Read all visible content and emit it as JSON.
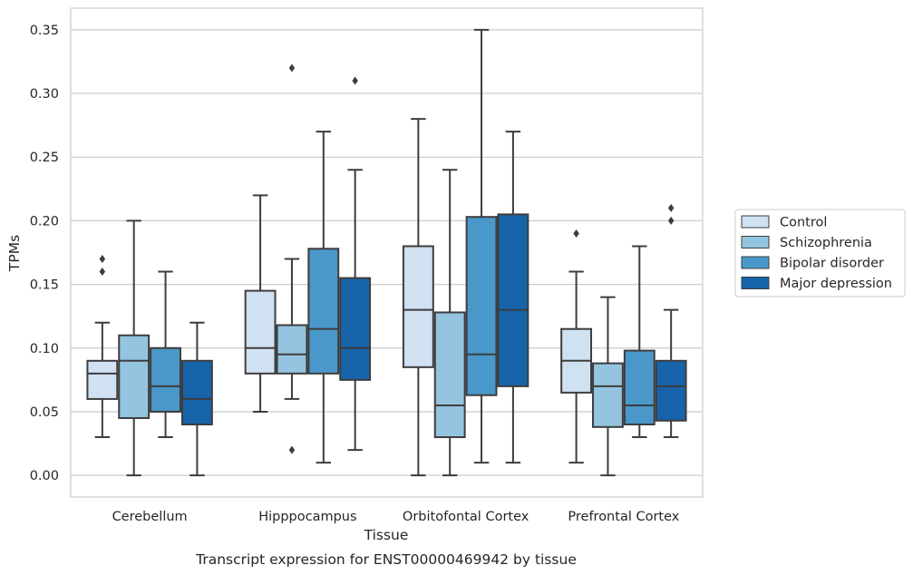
{
  "chart_data": {
    "type": "box",
    "title": "",
    "caption": "Transcript expression for ENST00000469942 by tissue",
    "xlabel": "Tissue",
    "ylabel": "TPMs",
    "ylim": [
      -0.017,
      0.367
    ],
    "yticks": [
      0.0,
      0.05,
      0.1,
      0.15,
      0.2,
      0.25,
      0.3,
      0.35
    ],
    "ytick_labels": [
      "0.00",
      "0.05",
      "0.10",
      "0.15",
      "0.20",
      "0.25",
      "0.30",
      "0.35"
    ],
    "grid": "horizontal",
    "legend_position": "right",
    "categories": [
      "Cerebellum",
      "Hipppocampus",
      "Orbitofontal Cortex",
      "Prefrontal Cortex"
    ],
    "series": [
      {
        "name": "Control",
        "color": "#d0e1f2",
        "boxes": [
          {
            "whislo": 0.03,
            "q1": 0.06,
            "med": 0.08,
            "q3": 0.09,
            "whishi": 0.12,
            "fliers": [
              0.16,
              0.17
            ]
          },
          {
            "whislo": 0.05,
            "q1": 0.08,
            "med": 0.1,
            "q3": 0.145,
            "whishi": 0.22,
            "fliers": []
          },
          {
            "whislo": 0.0,
            "q1": 0.085,
            "med": 0.13,
            "q3": 0.18,
            "whishi": 0.28,
            "fliers": []
          },
          {
            "whislo": 0.01,
            "q1": 0.065,
            "med": 0.09,
            "q3": 0.115,
            "whishi": 0.16,
            "fliers": [
              0.19
            ]
          }
        ]
      },
      {
        "name": "Schizophrenia",
        "color": "#94c4df",
        "boxes": [
          {
            "whislo": 0.0,
            "q1": 0.045,
            "med": 0.09,
            "q3": 0.11,
            "whishi": 0.2,
            "fliers": []
          },
          {
            "whislo": 0.06,
            "q1": 0.08,
            "med": 0.095,
            "q3": 0.118,
            "whishi": 0.17,
            "fliers": [
              0.32,
              0.02
            ]
          },
          {
            "whislo": 0.0,
            "q1": 0.03,
            "med": 0.055,
            "q3": 0.128,
            "whishi": 0.24,
            "fliers": []
          },
          {
            "whislo": 0.0,
            "q1": 0.038,
            "med": 0.07,
            "q3": 0.088,
            "whishi": 0.14,
            "fliers": []
          }
        ]
      },
      {
        "name": "Bipolar disorder",
        "color": "#4a98c9",
        "boxes": [
          {
            "whislo": 0.03,
            "q1": 0.05,
            "med": 0.07,
            "q3": 0.1,
            "whishi": 0.16,
            "fliers": []
          },
          {
            "whislo": 0.01,
            "q1": 0.08,
            "med": 0.115,
            "q3": 0.178,
            "whishi": 0.27,
            "fliers": []
          },
          {
            "whislo": 0.01,
            "q1": 0.063,
            "med": 0.095,
            "q3": 0.203,
            "whishi": 0.35,
            "fliers": []
          },
          {
            "whislo": 0.03,
            "q1": 0.04,
            "med": 0.055,
            "q3": 0.098,
            "whishi": 0.18,
            "fliers": []
          }
        ]
      },
      {
        "name": "Major depression",
        "color": "#1764ab",
        "boxes": [
          {
            "whislo": 0.0,
            "q1": 0.04,
            "med": 0.06,
            "q3": 0.09,
            "whishi": 0.12,
            "fliers": []
          },
          {
            "whislo": 0.02,
            "q1": 0.075,
            "med": 0.1,
            "q3": 0.155,
            "whishi": 0.24,
            "fliers": [
              0.31
            ]
          },
          {
            "whislo": 0.01,
            "q1": 0.07,
            "med": 0.13,
            "q3": 0.205,
            "whishi": 0.27,
            "fliers": []
          },
          {
            "whislo": 0.03,
            "q1": 0.043,
            "med": 0.07,
            "q3": 0.09,
            "whishi": 0.13,
            "fliers": [
              0.2,
              0.21
            ]
          }
        ]
      }
    ]
  }
}
